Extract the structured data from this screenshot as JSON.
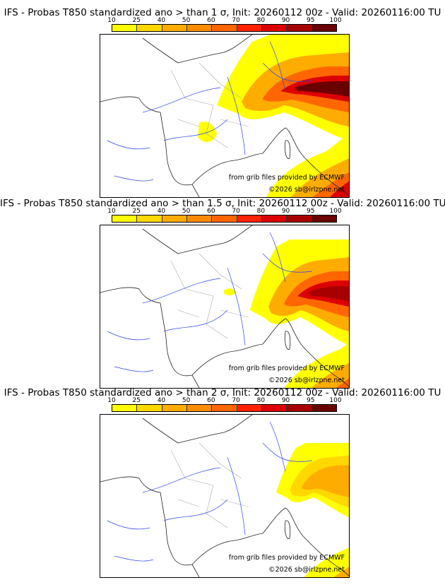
{
  "colorbar": {
    "ticks": [
      "10",
      "25",
      "40",
      "50",
      "60",
      "70",
      "80",
      "90",
      "95",
      "100"
    ],
    "colors": [
      "#ffff00",
      "#ffd800",
      "#ffac00",
      "#ff8c00",
      "#ff6600",
      "#ff2200",
      "#dd0000",
      "#a80000",
      "#6a0000"
    ]
  },
  "credits": {
    "source": "from grib files provided by ECMWF",
    "copyright": "©2026 sb@irlzpne.net"
  },
  "panels": [
    {
      "title": "IFS - Probas T850  standardized ano > than 1 σ, Init: 20260112 00z - Valid: 20260116:00 TU",
      "threshold_sigma": 1,
      "max_level": 9
    },
    {
      "title": "IFS - Probas T850  standardized ano > than 1.5 σ, Init: 20260112 00z - Valid: 20260116:00 TU",
      "threshold_sigma": 1.5,
      "max_level": 7
    },
    {
      "title": "IFS - Probas T850  standardized ano > than 2 σ, Init: 20260112 00z - Valid: 20260116:00 TU",
      "threshold_sigma": 2,
      "max_level": 3
    }
  ]
}
